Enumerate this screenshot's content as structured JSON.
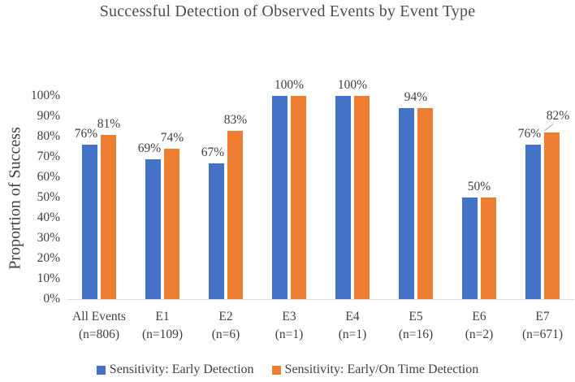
{
  "chart_data": {
    "type": "bar",
    "title": "Successful Detection of Observed Events by Event Type",
    "xlabel": "",
    "ylabel": "Proportion of Success",
    "ylim": [
      0,
      100
    ],
    "grid": false,
    "legend_position": "bottom",
    "y_ticks": [
      "0%",
      "10%",
      "20%",
      "30%",
      "40%",
      "50%",
      "60%",
      "70%",
      "80%",
      "90%",
      "100%"
    ],
    "series": [
      {
        "name": "Sensitivity: Early Detection",
        "color": "#4472C4",
        "values": [
          76,
          69,
          67,
          100,
          100,
          94,
          50,
          76
        ]
      },
      {
        "name": "Sensitivity: Early/On Time Detection",
        "color": "#ED7D31",
        "values": [
          81,
          74,
          83,
          100,
          100,
          94,
          50,
          82
        ]
      }
    ],
    "categories": [
      {
        "label": "All Events",
        "sublabel": "(n=806)",
        "labels": [
          {
            "text": "76%",
            "series": 0
          },
          {
            "text": "81%",
            "series": 1
          }
        ]
      },
      {
        "label": "E1",
        "sublabel": "(n=109)",
        "labels": [
          {
            "text": "69%",
            "series": 0
          },
          {
            "text": "74%",
            "series": 1
          }
        ]
      },
      {
        "label": "E2",
        "sublabel": "(n=6)",
        "labels": [
          {
            "text": "67%",
            "series": 0
          },
          {
            "text": "83%",
            "series": 1
          }
        ]
      },
      {
        "label": "E3",
        "sublabel": "(n=1)",
        "labels": [
          {
            "text": "100%",
            "series": "center"
          }
        ]
      },
      {
        "label": "E4",
        "sublabel": "(n=1)",
        "labels": [
          {
            "text": "100%",
            "series": "center"
          }
        ]
      },
      {
        "label": "E5",
        "sublabel": "(n=16)",
        "labels": [
          {
            "text": "94%",
            "series": "center"
          }
        ]
      },
      {
        "label": "E6",
        "sublabel": "(n=2)",
        "labels": [
          {
            "text": "50%",
            "series": "center"
          }
        ]
      },
      {
        "label": "E7",
        "sublabel": "(n=671)",
        "labels": [
          {
            "text": "76%",
            "series": 0
          },
          {
            "text": "82%",
            "series": 1,
            "leader": true
          }
        ]
      }
    ],
    "colors": {
      "axis_line": "#d9d9d9",
      "text": "#404040",
      "leader_line": "#a6a6a6"
    }
  }
}
